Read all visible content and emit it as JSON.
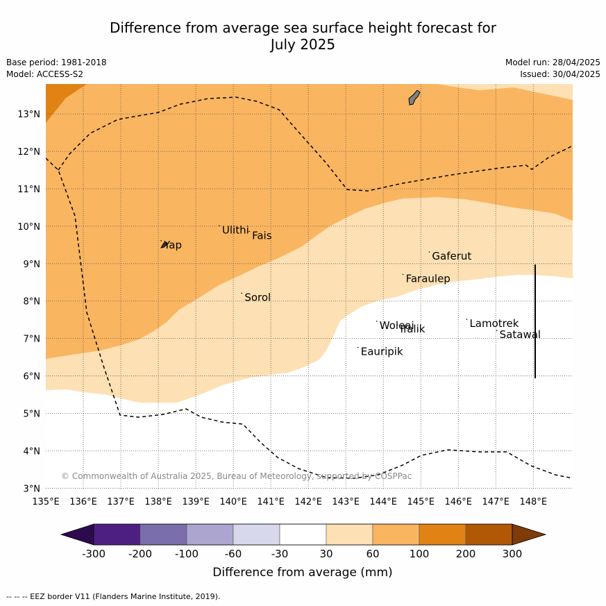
{
  "title_line1": "Difference from average sea surface height forecast for",
  "title_line2": "July 2025",
  "meta_left": [
    "Base period: 1981-2018",
    "Model: ACCESS-S2"
  ],
  "meta_right": [
    "Model run: 28/04/2025",
    "Issued: 30/04/2025"
  ],
  "copyright": "© Commonwealth of Australia 2025, Bureau of Meteorology, supported by COSPPac",
  "footer": "-- -- -- EEZ border V11 (Flanders Marine Institute, 2019).",
  "map": {
    "lon_ticks": [
      "135°E",
      "136°E",
      "137°E",
      "138°E",
      "139°E",
      "140°E",
      "141°E",
      "142°E",
      "143°E",
      "144°E",
      "145°E",
      "146°E",
      "147°E",
      "148°E"
    ],
    "lat_ticks": [
      "3°N",
      "4°N",
      "5°N",
      "6°N",
      "7°N",
      "8°N",
      "9°N",
      "10°N",
      "11°N",
      "12°N",
      "13°N"
    ],
    "lon_range": [
      135,
      149.05
    ],
    "lat_range": [
      2.95,
      13.8
    ],
    "places": [
      {
        "name": "Yap",
        "lon": 138.15,
        "lat": 9.5
      },
      {
        "name": "Ulithi",
        "lon": 139.7,
        "lat": 9.9
      },
      {
        "name": "Fais",
        "lon": 140.5,
        "lat": 9.75
      },
      {
        "name": "Gaferut",
        "lon": 145.3,
        "lat": 9.2
      },
      {
        "name": "Faraulep",
        "lon": 144.6,
        "lat": 8.6
      },
      {
        "name": "Sorol",
        "lon": 140.3,
        "lat": 8.1
      },
      {
        "name": "Woleai",
        "lon": 143.9,
        "lat": 7.35
      },
      {
        "name": "Ifalik",
        "lon": 144.45,
        "lat": 7.25
      },
      {
        "name": "Lamotrek",
        "lon": 146.3,
        "lat": 7.4
      },
      {
        "name": "Satawal",
        "lon": 147.1,
        "lat": 7.1
      },
      {
        "name": "Eauripik",
        "lon": 143.4,
        "lat": 6.65
      }
    ]
  },
  "colorbar": {
    "title": "Difference from average (mm)",
    "ticks": [
      "-300",
      "-200",
      "-100",
      "-60",
      "-30",
      "30",
      "60",
      "100",
      "200",
      "300"
    ],
    "colors": {
      "below": "#2d0a4e",
      "bins": [
        "#4e1f82",
        "#7b6ead",
        "#aba5d0",
        "#d8d8ec",
        "#ffffff",
        "#fde0b3",
        "#fab560",
        "#e08214",
        "#b15806"
      ],
      "above": "#7f3b08"
    }
  }
}
